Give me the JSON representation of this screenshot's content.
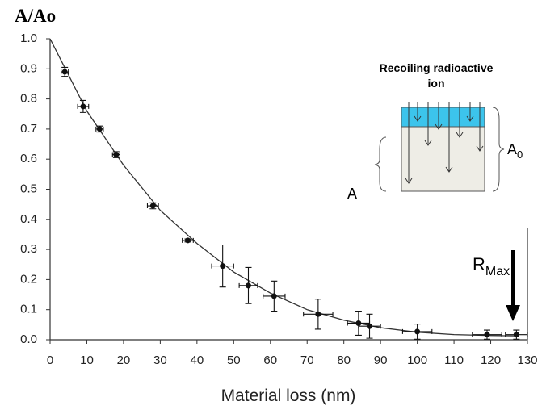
{
  "chart_data": {
    "type": "scatter",
    "title": "A/Ao",
    "x_label": "Material loss (nm)",
    "xlim": [
      0,
      130
    ],
    "ylim": [
      0,
      1
    ],
    "xticks": [
      0,
      10,
      20,
      30,
      40,
      50,
      60,
      70,
      80,
      90,
      100,
      110,
      120,
      130
    ],
    "yticks": [
      {
        "value": 0,
        "label": "0.0"
      },
      0.1,
      0.2,
      0.3,
      0.4,
      0.5,
      0.6,
      0.7,
      0.8,
      0.9,
      {
        "value": 1,
        "label": "1.0"
      }
    ],
    "color": "#111111",
    "x": [
      4,
      9,
      13.5,
      18,
      28,
      37.5,
      47,
      54,
      61,
      73,
      84,
      87,
      100,
      119,
      127
    ],
    "values": [
      0.89,
      0.775,
      0.7,
      0.615,
      0.445,
      0.33,
      0.245,
      0.18,
      0.145,
      0.085,
      0.055,
      0.045,
      0.027,
      0.017,
      0.017
    ],
    "yerr": [
      0.015,
      0.02,
      0.01,
      0.01,
      0.01,
      0.005,
      0.07,
      0.06,
      0.05,
      0.05,
      0.04,
      0.04,
      0.025,
      0.015,
      0.015
    ],
    "xerr": [
      1,
      1.5,
      1,
      1,
      1.5,
      1.5,
      3,
      2.5,
      3,
      4,
      3,
      3,
      4,
      4,
      3
    ],
    "fit": {
      "x": [
        0,
        10,
        20,
        30,
        40,
        50,
        60,
        70,
        80,
        90,
        100,
        110,
        120,
        127
      ],
      "y": [
        1.0,
        0.76,
        0.58,
        0.43,
        0.32,
        0.225,
        0.155,
        0.1,
        0.065,
        0.04,
        0.025,
        0.017,
        0.014,
        0.013
      ]
    },
    "annotations": {
      "inset_title": [
        "Recoiling radioactive",
        "ion"
      ],
      "inset_a": "A",
      "inset_a0": {
        "base": "A",
        "sub": "0"
      },
      "rmax": {
        "base": "R",
        "sub": "Max"
      }
    }
  }
}
